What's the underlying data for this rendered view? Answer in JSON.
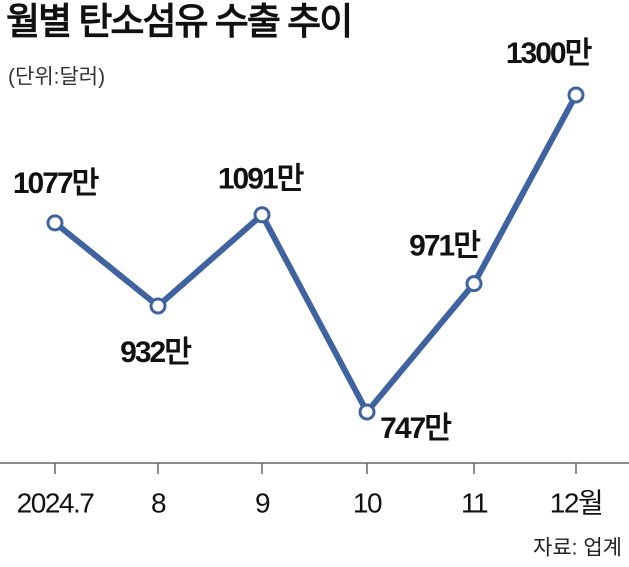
{
  "chart_data": {
    "type": "line",
    "title": "월별 탄소섬유 수출 추이",
    "subtitle": "(단위:달러)",
    "source": "자료: 업계",
    "categories": [
      "2024.7",
      "8",
      "9",
      "10",
      "11",
      "12월"
    ],
    "series": [
      {
        "color": "#3f62a0",
        "values": [
          1077,
          932,
          1091,
          747,
          971,
          1300
        ],
        "value_labels": [
          "1077만",
          "932만",
          "1091만",
          "747만",
          "971만",
          "1300만"
        ]
      }
    ]
  }
}
